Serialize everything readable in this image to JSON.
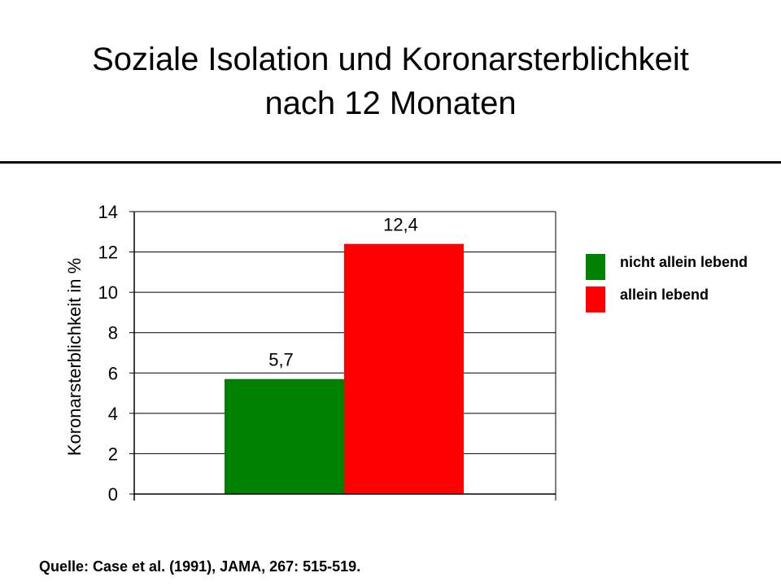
{
  "title": {
    "line1": "Soziale Isolation und Koronarsterblichkeit",
    "line2": "nach 12 Monaten"
  },
  "chart_data": {
    "type": "bar",
    "ylabel": "Koronarsterblichkeit in %",
    "ylim": [
      0,
      14
    ],
    "yticks": [
      "0",
      "2",
      "4",
      "6",
      "8",
      "10",
      "12",
      "14"
    ],
    "grid": true,
    "legend_position": "right",
    "series": [
      {
        "name": "nicht allein lebend",
        "value": 5.7,
        "label": "5,7",
        "color": "#008000"
      },
      {
        "name": "allein lebend",
        "value": 12.4,
        "label": "12,4",
        "color": "#ff0000"
      }
    ]
  },
  "legend": {
    "items": [
      {
        "label": "nicht allein lebend",
        "color": "#008000"
      },
      {
        "label": "allein lebend",
        "color": "#ff0000"
      }
    ]
  },
  "source": "Quelle: Case et al. (1991), JAMA, 267: 515-519."
}
